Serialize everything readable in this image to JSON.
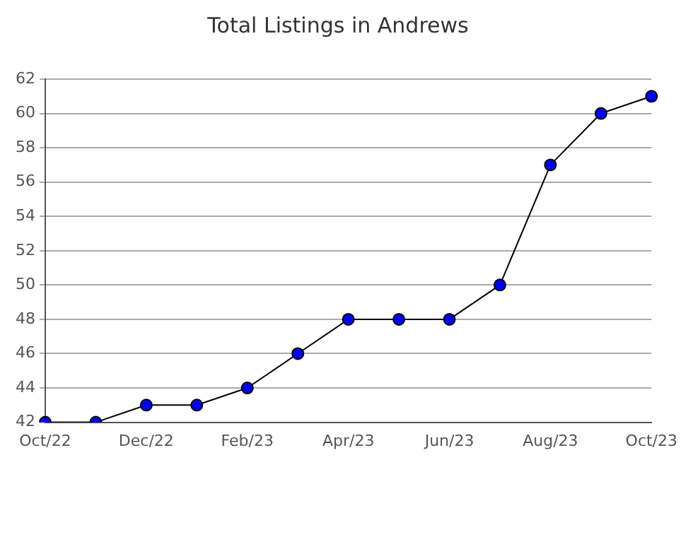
{
  "chart_data": {
    "type": "line",
    "title": "Total Listings in Andrews",
    "categories": [
      "Oct/22",
      null,
      "Dec/22",
      null,
      "Feb/23",
      null,
      "Apr/23",
      null,
      "Jun/23",
      null,
      "Aug/23",
      null,
      "Oct/23"
    ],
    "series": [
      {
        "color": "#0000ff",
        "values": [
          42,
          42,
          43,
          43,
          44,
          46,
          48,
          48,
          48,
          50,
          57,
          60,
          61
        ]
      }
    ],
    "ylim": [
      42,
      62
    ],
    "yticks": [
      42,
      44,
      46,
      48,
      50,
      52,
      54,
      56,
      58,
      60,
      62
    ],
    "grid": "y",
    "legend": false,
    "marker": "circle",
    "line_style": "solid"
  }
}
